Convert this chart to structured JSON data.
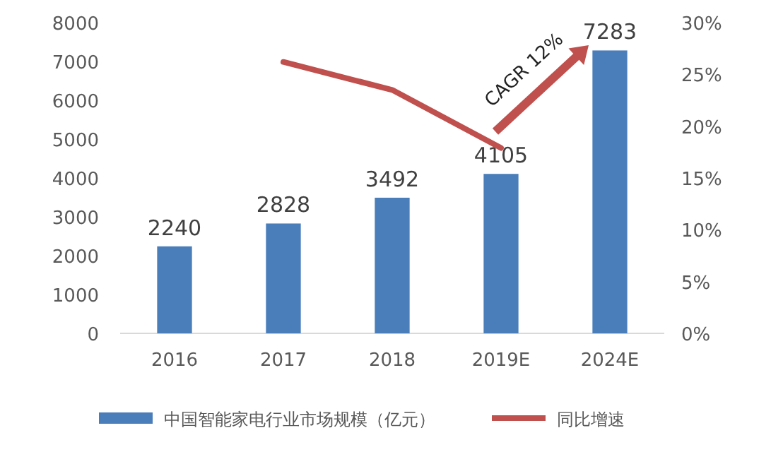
{
  "chart_data": {
    "type": "bar",
    "categories": [
      "2016",
      "2017",
      "2018",
      "2019E",
      "2024E"
    ],
    "series": [
      {
        "name": "中国智能家电行业市场规模（亿元）",
        "color": "#4a7ebb",
        "values": [
          2240,
          2828,
          3492,
          4105,
          7283
        ],
        "value_labels": [
          "2240",
          "2828",
          "3492",
          "4105",
          "7283"
        ]
      },
      {
        "name": "同比增速",
        "type": "line",
        "axis": "y2",
        "color": "#c0504d",
        "values": [
          null,
          26.2,
          23.5,
          17.9,
          null
        ]
      }
    ],
    "ylim": [
      0,
      8000
    ],
    "yticks": [
      0,
      1000,
      2000,
      3000,
      4000,
      5000,
      6000,
      7000,
      8000
    ],
    "y2lim": [
      0,
      30
    ],
    "y2ticks": [
      {
        "value": 0,
        "label": "0%"
      },
      {
        "value": 5,
        "label": "5%"
      },
      {
        "value": 10,
        "label": "10%"
      },
      {
        "value": 15,
        "label": "15%"
      },
      {
        "value": 20,
        "label": "20%"
      },
      {
        "value": 25,
        "label": "25%"
      },
      {
        "value": 30,
        "label": "30%"
      }
    ],
    "legend": "bottom",
    "grid": false,
    "annotations": [
      "CAGR 12%"
    ]
  }
}
